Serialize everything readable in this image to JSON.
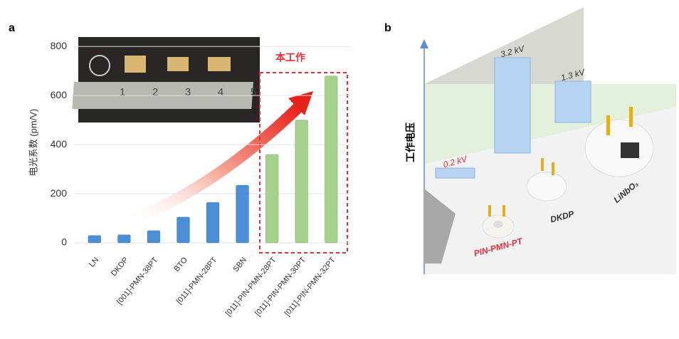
{
  "chart_data": [
    {
      "type": "bar",
      "panel_label": "a",
      "y_label": "电光系数 (pm/V)",
      "annotation": "本工作",
      "categories": [
        "LN",
        "DKDP",
        "[001]-PMN-38PT",
        "BTO",
        "[011]-PMN-28PT",
        "SBN",
        "[011]-PIN-PMN-28PT",
        "[011]-PIN-PMN-30PT",
        "[011]-PIN-PMN-32PT"
      ],
      "values": [
        30,
        33,
        50,
        105,
        165,
        235,
        360,
        500,
        680
      ],
      "colors": [
        "#4a8fd8",
        "#4a8fd8",
        "#4a8fd8",
        "#4a8fd8",
        "#4a8fd8",
        "#4a8fd8",
        "#a6d18a",
        "#a6d18a",
        "#a6d18a"
      ],
      "ylim": [
        0,
        850
      ],
      "yticks": [
        0,
        200,
        400,
        600,
        800
      ],
      "grid": true,
      "inset_ruler_labels": [
        "1",
        "2",
        "3",
        "4",
        "5"
      ]
    },
    {
      "type": "bar3d",
      "panel_label": "b",
      "y_label": "工作电压",
      "categories": [
        "PIN-PMN-PT",
        "DKDP",
        "LiNbO₃"
      ],
      "category_colors": [
        "#e0303a",
        "#333333",
        "#333333"
      ],
      "values": [
        0.2,
        3.2,
        1.3
      ],
      "value_labels": [
        "0.2 kV",
        "3.2 kV",
        "1.3 kV"
      ],
      "color": "#b7d3f2"
    }
  ]
}
